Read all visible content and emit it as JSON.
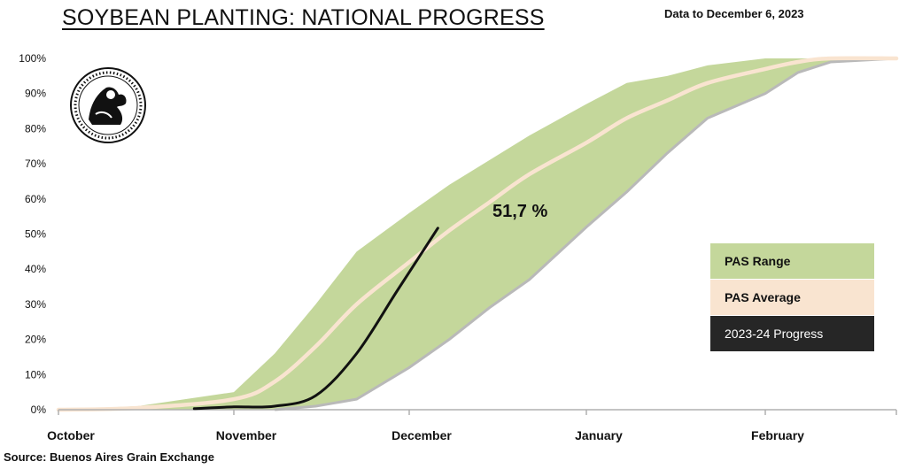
{
  "title": "SOYBEAN PLANTING: NATIONAL PROGRESS",
  "subtitle": "Data to December 6, 2023",
  "source": "Source: Buenos Aires Grain Exchange",
  "logo_text": "Buenos Aires Grain Exchange seal",
  "colors": {
    "range": "#c4d79b",
    "average": "#f9e4d0",
    "progress": "#111111",
    "legend_progress_bg": "#262626",
    "axis": "#b0b0b0"
  },
  "legend": [
    {
      "label": "PAS Range",
      "key": "range"
    },
    {
      "label": "PAS Average",
      "key": "average"
    },
    {
      "label": "2023-24 Progress",
      "key": "progress"
    }
  ],
  "chart_data": {
    "type": "area",
    "title": "SOYBEAN PLANTING: NATIONAL PROGRESS",
    "subtitle": "Data to December 6, 2023",
    "x_tick_labels": [
      "October",
      "November",
      "December",
      "January",
      "February"
    ],
    "y_tick_labels": [
      "0%",
      "10%",
      "20%",
      "30%",
      "40%",
      "50%",
      "60%",
      "70%",
      "80%",
      "90%",
      "100%"
    ],
    "ylim": [
      0,
      100
    ],
    "xlim": [
      "October",
      "March"
    ],
    "series": [
      {
        "name": "PAS Range",
        "kind": "band",
        "x": [
          "Oct 1",
          "Oct 15",
          "Nov 1",
          "Nov 8",
          "Nov 15",
          "Nov 22",
          "Dec 1",
          "Dec 8",
          "Dec 15",
          "Dec 22",
          "Jan 1",
          "Jan 8",
          "Jan 15",
          "Jan 22",
          "Feb 1",
          "Feb 8",
          "Feb 15",
          "Mar 1"
        ],
        "upper": [
          0,
          1,
          5,
          16,
          30,
          45,
          56,
          64,
          71,
          78,
          87,
          93,
          95,
          98,
          100,
          100,
          100,
          100
        ],
        "lower": [
          0,
          0,
          0,
          0,
          1,
          3,
          12,
          20,
          29,
          37,
          52,
          62,
          73,
          83,
          90,
          96,
          99,
          100
        ]
      },
      {
        "name": "PAS Average",
        "kind": "line",
        "x": [
          "Oct 1",
          "Oct 15",
          "Nov 1",
          "Nov 8",
          "Nov 15",
          "Nov 22",
          "Dec 1",
          "Dec 8",
          "Dec 15",
          "Dec 22",
          "Jan 1",
          "Jan 8",
          "Jan 15",
          "Jan 22",
          "Feb 1",
          "Feb 8",
          "Feb 15",
          "Mar 1"
        ],
        "values": [
          0,
          0.5,
          3,
          8,
          18,
          30,
          42,
          51,
          59,
          67,
          76,
          83,
          88,
          93,
          97,
          99,
          100,
          100
        ]
      },
      {
        "name": "2023-24 Progress",
        "kind": "line",
        "x": [
          "Oct 25",
          "Nov 1",
          "Nov 8",
          "Nov 15",
          "Nov 22",
          "Nov 29",
          "Dec 6"
        ],
        "values": [
          0.3,
          0.8,
          1,
          4,
          16,
          34,
          51.7
        ]
      }
    ],
    "annotations": [
      "51,7 %"
    ],
    "legend_position": "right"
  }
}
